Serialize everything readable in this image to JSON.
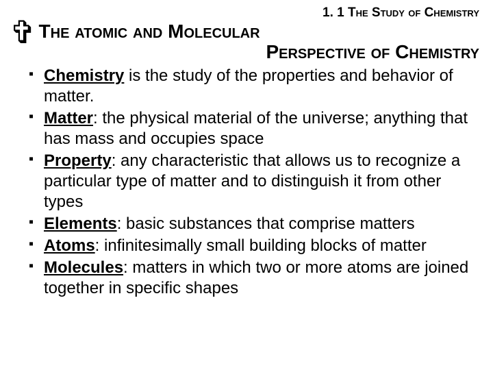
{
  "section_number": "1. 1 The Study of Chemistry",
  "cross_glyph": "✞",
  "title_line1": "The atomic and Molecular",
  "title_line2": "Perspective of Chemistry",
  "items": [
    {
      "term": "Chemistry",
      "rest": " is the study of the properties and behavior of matter."
    },
    {
      "term": "Matter",
      "rest": ": the physical material of the universe; anything that has mass and occupies space"
    },
    {
      "term": "Property",
      "rest": ": any characteristic that allows us to recognize a particular type of matter and to distinguish it from other types"
    },
    {
      "term": "Elements",
      "rest": ": basic substances that comprise matters"
    },
    {
      "term": "Atoms",
      "rest": ": infinitesimally small building blocks of matter"
    },
    {
      "term": "Molecules",
      "rest": ": matters in which two or more atoms are joined together in specific shapes"
    }
  ]
}
